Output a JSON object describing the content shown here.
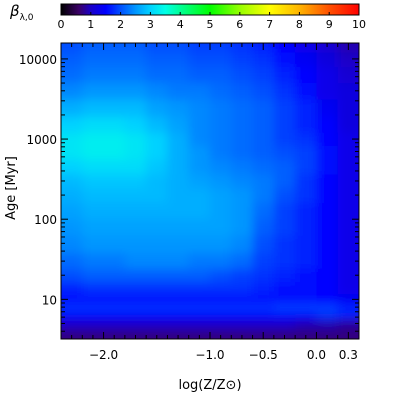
{
  "chart_data": {
    "type": "heatmap",
    "title": "",
    "xlabel": "log(Z/Z⊙)",
    "ylabel": "Age [Myr]",
    "x_scale": "linear",
    "y_scale": "log",
    "xlim": [
      -2.4,
      0.4
    ],
    "ylim": [
      3.2,
      15800
    ],
    "x_ticks": [
      -2.0,
      -1.0,
      -0.5,
      0.0,
      0.3
    ],
    "x_tick_labels": [
      "−2.0",
      "−1.0",
      "−0.5",
      "0.0",
      "0.3"
    ],
    "y_ticks": [
      10,
      100,
      1000,
      10000
    ],
    "y_tick_labels": [
      "10",
      "100",
      "1000",
      "10000"
    ],
    "colorbar": {
      "label": "βλ,0",
      "label_main": "β",
      "label_sub": "λ,0",
      "placement": "top",
      "range": [
        0,
        10
      ],
      "ticks": [
        0,
        1,
        2,
        3,
        4,
        5,
        6,
        7,
        8,
        9,
        10
      ],
      "tick_labels": [
        "0",
        "1",
        "2",
        "3",
        "4",
        "5",
        "6",
        "7",
        "8",
        "9",
        "10"
      ],
      "colormap": "rainbow"
    },
    "color_stops": [
      {
        "value": 0.0,
        "color": "#000000"
      },
      {
        "value": 0.6,
        "color": "#3a0066"
      },
      {
        "value": 1.0,
        "color": "#1a00c8"
      },
      {
        "value": 1.5,
        "color": "#0000ff"
      },
      {
        "value": 2.0,
        "color": "#0050ff"
      },
      {
        "value": 2.5,
        "color": "#0096ff"
      },
      {
        "value": 3.0,
        "color": "#00d2ff"
      },
      {
        "value": 3.5,
        "color": "#00ffe6"
      },
      {
        "value": 4.0,
        "color": "#00ff96"
      },
      {
        "value": 5.0,
        "color": "#00ff00"
      },
      {
        "value": 6.0,
        "color": "#96ff00"
      },
      {
        "value": 7.0,
        "color": "#ffff00"
      },
      {
        "value": 8.0,
        "color": "#ffb400"
      },
      {
        "value": 9.0,
        "color": "#ff5000"
      },
      {
        "value": 10.0,
        "color": "#ff0000"
      }
    ],
    "grid": false,
    "x_centers": [
      -2.3,
      -2.1,
      -1.9,
      -1.7,
      -1.5,
      -1.3,
      -1.1,
      -0.9,
      -0.7,
      -0.5,
      -0.3,
      -0.1,
      0.1,
      0.3
    ],
    "y_centers": [
      3.5,
      5,
      6.5,
      8,
      10,
      14,
      20,
      30,
      50,
      80,
      130,
      200,
      300,
      450,
      700,
      1000,
      1500,
      2500,
      4000,
      6500,
      10000,
      15000
    ],
    "z": [
      [
        0.7,
        0.7,
        0.7,
        0.7,
        0.7,
        0.7,
        0.7,
        0.7,
        0.7,
        0.7,
        0.7,
        0.7,
        0.7,
        0.7
      ],
      [
        1.0,
        1.0,
        1.0,
        1.0,
        1.0,
        1.0,
        1.0,
        1.0,
        1.0,
        1.0,
        1.0,
        0.9,
        0.9,
        0.8
      ],
      [
        1.6,
        1.6,
        1.6,
        1.6,
        1.6,
        1.6,
        1.6,
        1.6,
        1.6,
        1.6,
        1.6,
        1.6,
        1.8,
        1.7
      ],
      [
        1.8,
        1.8,
        1.8,
        1.8,
        1.8,
        1.8,
        1.8,
        1.8,
        1.8,
        1.8,
        1.9,
        1.9,
        1.9,
        1.7
      ],
      [
        1.6,
        1.6,
        1.6,
        1.6,
        1.6,
        1.6,
        1.6,
        1.6,
        1.6,
        1.6,
        1.6,
        1.6,
        1.5,
        1.4
      ],
      [
        1.7,
        1.8,
        1.8,
        1.8,
        1.8,
        1.8,
        1.8,
        1.8,
        1.8,
        1.7,
        1.6,
        1.6,
        1.5,
        1.3
      ],
      [
        2.0,
        2.1,
        2.1,
        2.1,
        2.1,
        2.1,
        2.1,
        2.0,
        1.9,
        1.8,
        1.7,
        1.6,
        1.5,
        1.3
      ],
      [
        2.2,
        2.3,
        2.3,
        2.4,
        2.4,
        2.4,
        2.3,
        2.3,
        2.2,
        1.9,
        1.8,
        1.7,
        1.5,
        1.3
      ],
      [
        2.4,
        2.5,
        2.5,
        2.5,
        2.5,
        2.5,
        2.5,
        2.5,
        2.4,
        2.0,
        1.8,
        1.7,
        1.5,
        1.3
      ],
      [
        2.5,
        2.6,
        2.6,
        2.6,
        2.6,
        2.6,
        2.6,
        2.6,
        2.5,
        2.1,
        1.9,
        1.7,
        1.5,
        1.3
      ],
      [
        2.6,
        2.7,
        2.7,
        2.7,
        2.7,
        2.7,
        2.7,
        2.6,
        2.5,
        2.2,
        1.9,
        1.7,
        1.5,
        1.3
      ],
      [
        2.7,
        2.8,
        2.8,
        2.8,
        2.8,
        2.7,
        2.7,
        2.6,
        2.5,
        2.3,
        2.0,
        1.8,
        1.5,
        1.3
      ],
      [
        2.8,
        2.9,
        2.9,
        2.9,
        2.8,
        2.7,
        2.6,
        2.5,
        2.4,
        2.3,
        2.1,
        1.8,
        1.5,
        1.3
      ],
      [
        3.0,
        3.1,
        3.1,
        3.1,
        2.9,
        2.7,
        2.5,
        2.4,
        2.3,
        2.2,
        2.1,
        1.9,
        1.6,
        1.3
      ],
      [
        3.2,
        3.3,
        3.3,
        3.2,
        3.0,
        2.7,
        2.5,
        2.3,
        2.2,
        2.1,
        2.0,
        1.9,
        1.6,
        1.3
      ],
      [
        3.2,
        3.3,
        3.3,
        3.2,
        3.0,
        2.7,
        2.4,
        2.3,
        2.2,
        2.1,
        1.9,
        1.8,
        1.5,
        1.3
      ],
      [
        3.0,
        3.1,
        3.1,
        3.0,
        2.8,
        2.6,
        2.4,
        2.3,
        2.2,
        2.1,
        1.9,
        1.7,
        1.5,
        1.2
      ],
      [
        2.7,
        2.8,
        2.8,
        2.8,
        2.6,
        2.5,
        2.4,
        2.3,
        2.2,
        2.1,
        1.9,
        1.7,
        1.4,
        1.2
      ],
      [
        2.4,
        2.5,
        2.5,
        2.5,
        2.4,
        2.3,
        2.3,
        2.2,
        2.1,
        2.0,
        1.8,
        1.6,
        1.3,
        1.2
      ],
      [
        2.2,
        2.3,
        2.3,
        2.3,
        2.2,
        2.2,
        2.1,
        2.1,
        2.0,
        1.9,
        1.7,
        1.5,
        1.3,
        1.1
      ],
      [
        2.1,
        2.2,
        2.2,
        2.2,
        2.1,
        2.1,
        2.0,
        2.0,
        1.9,
        1.8,
        1.6,
        1.4,
        1.2,
        1.0
      ],
      [
        2.0,
        2.1,
        2.1,
        2.1,
        2.0,
        2.0,
        1.9,
        1.9,
        1.8,
        1.7,
        1.5,
        1.3,
        1.1,
        0.9
      ]
    ]
  }
}
